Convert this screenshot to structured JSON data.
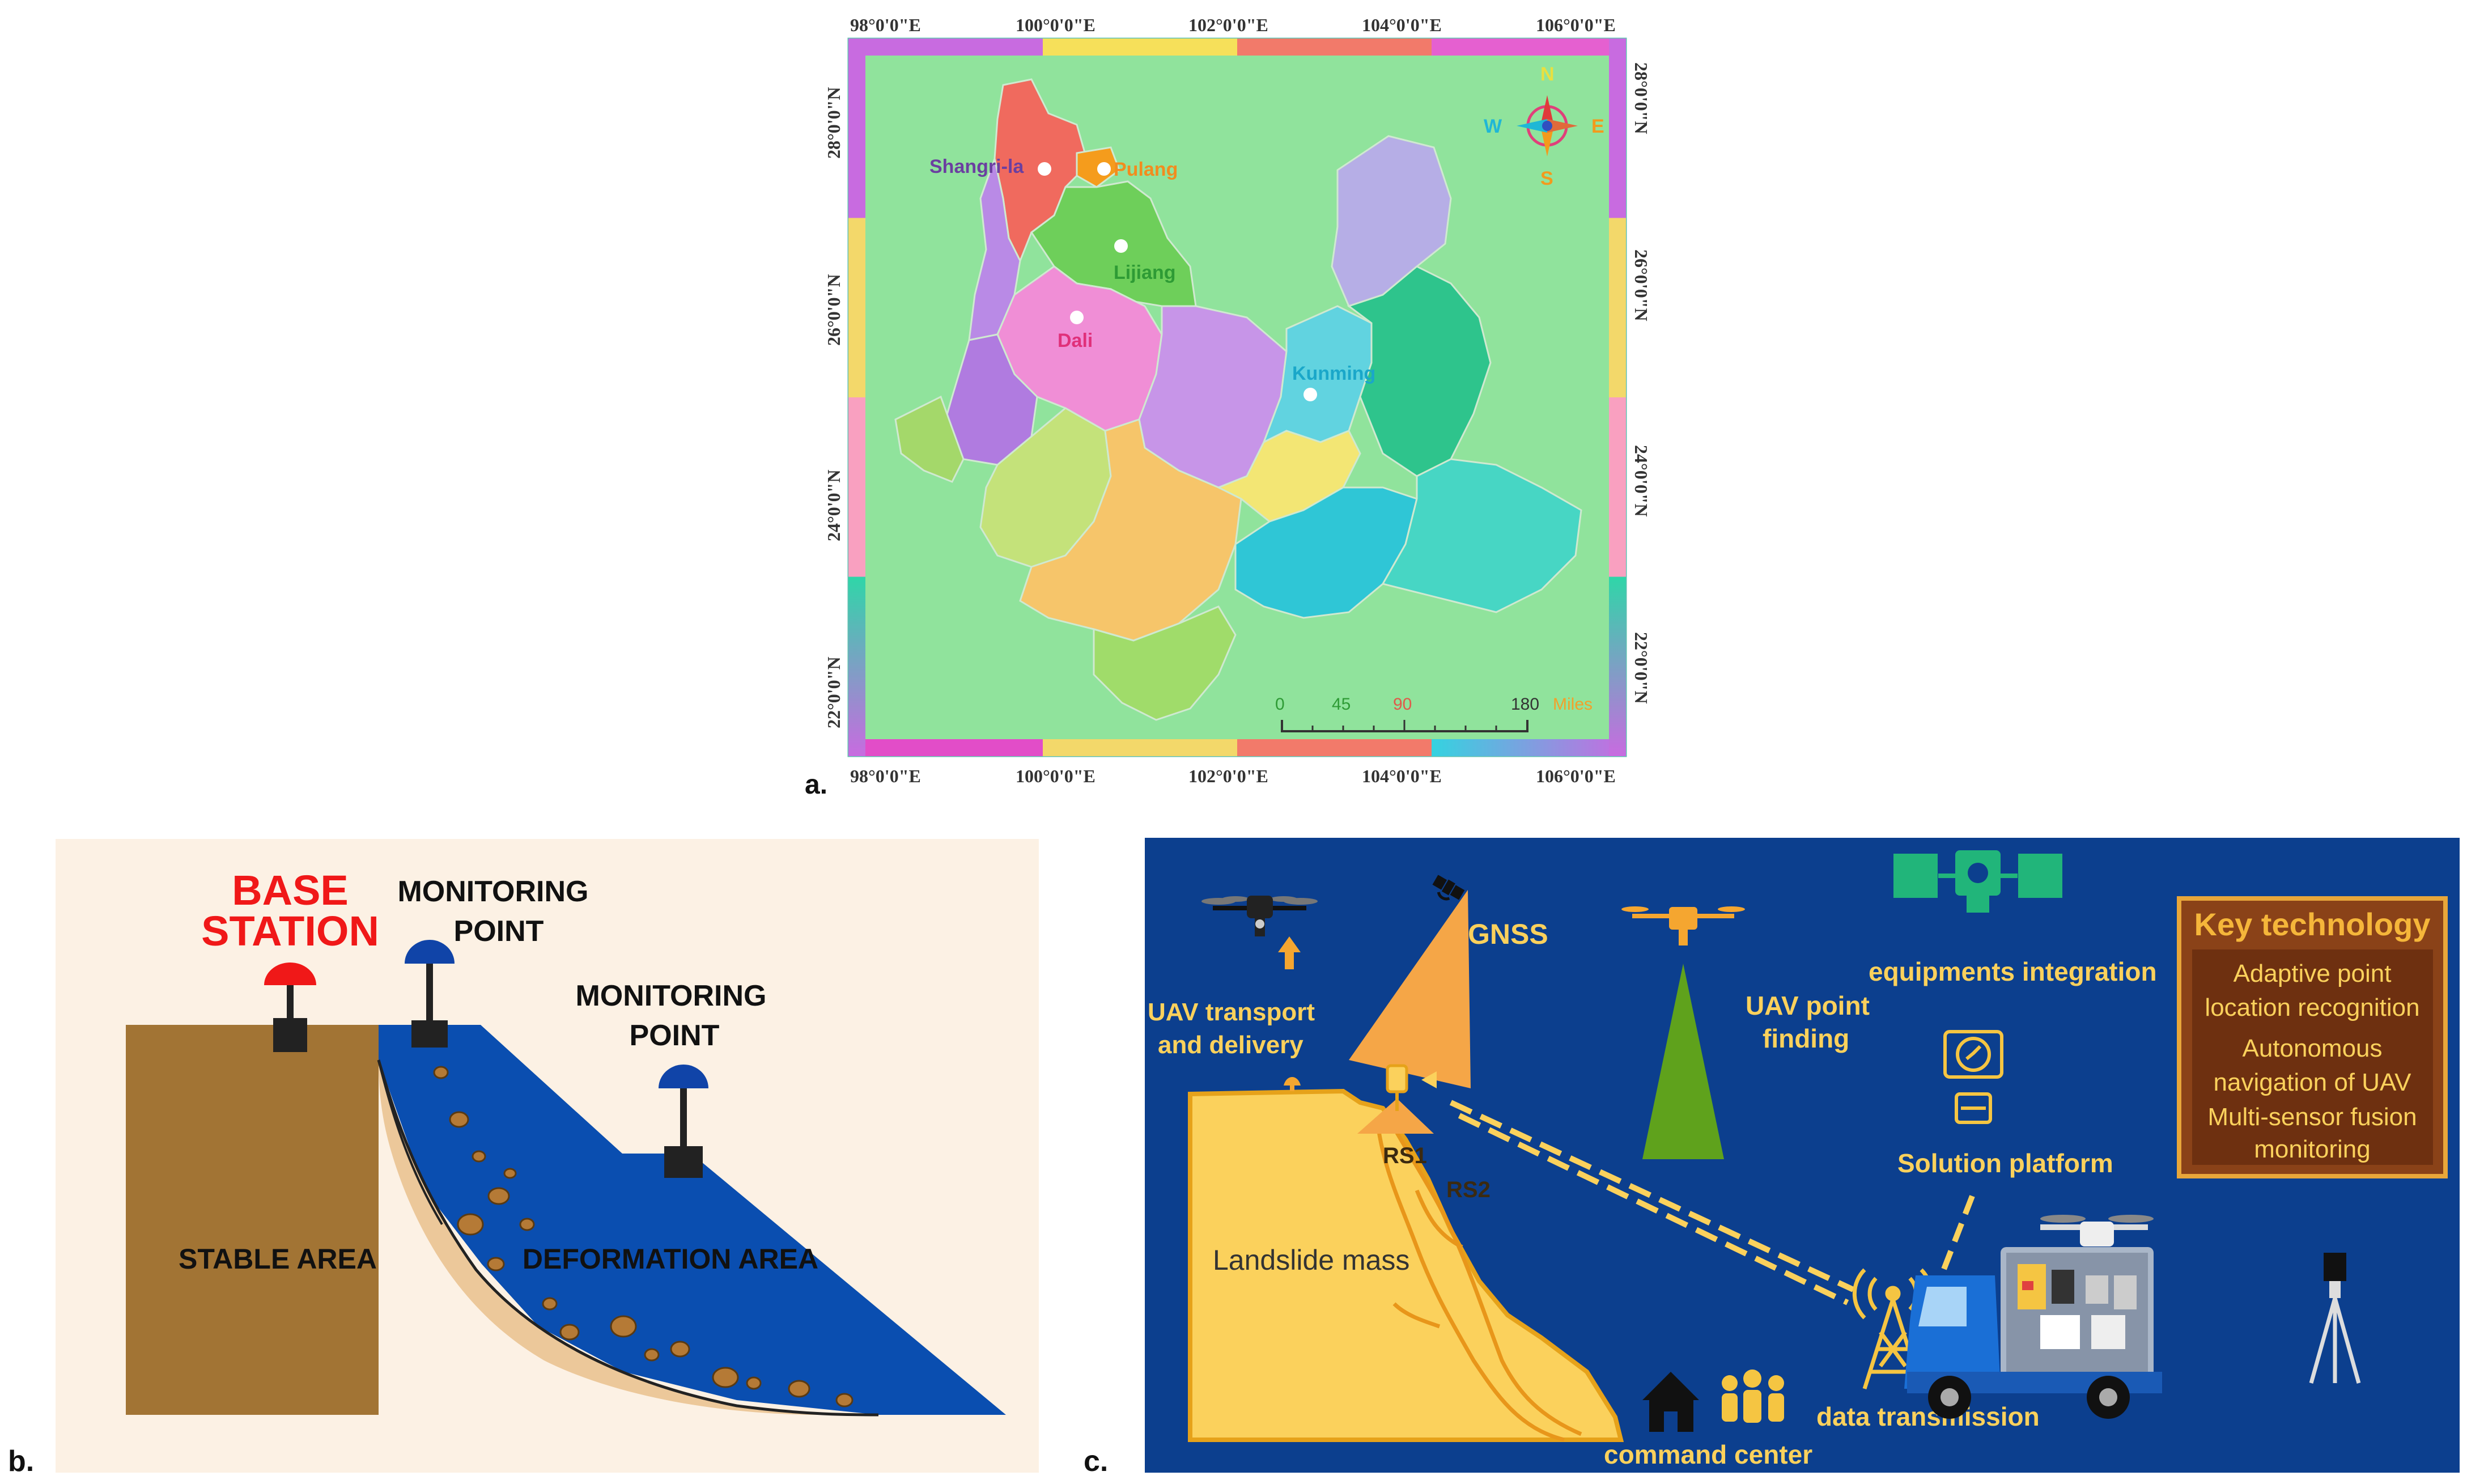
{
  "panel_a": {
    "label": "a.",
    "lon_labels": [
      "98°0'0\"E",
      "100°0'0\"E",
      "102°0'0\"E",
      "104°0'0\"E",
      "106°0'0\"E"
    ],
    "lat_labels": [
      "28°0'0\"N",
      "26°0'0\"N",
      "24°0'0\"N",
      "22°0'0\"N"
    ],
    "compass": {
      "n": "N",
      "s": "S",
      "e": "E",
      "w": "W"
    },
    "cities": [
      {
        "name": "Shangri-la",
        "color": "#6b3fa0"
      },
      {
        "name": "Pulang",
        "color": "#f28c1e"
      },
      {
        "name": "Lijiang",
        "color": "#2e9b35"
      },
      {
        "name": "Dali",
        "color": "#e0307a"
      },
      {
        "name": "Kunming",
        "color": "#1aa7c9"
      }
    ],
    "scale": {
      "ticks": [
        "0",
        "45",
        "90",
        "180"
      ],
      "unit": "Miles"
    }
  },
  "panel_b": {
    "label": "b.",
    "base_station": [
      "BASE",
      "STATION"
    ],
    "monitoring_point_1": [
      "MONITORING",
      "POINT"
    ],
    "monitoring_point_2": [
      "MONITORING",
      "POINT"
    ],
    "stable_area": "STABLE AREA",
    "deformation_area": "DEFORMATION AREA"
  },
  "panel_c": {
    "label": "c.",
    "gnss": "GNSS",
    "uav_transport": [
      "UAV transport",
      "and delivery"
    ],
    "uav_point_finding": [
      "UAV point",
      "finding"
    ],
    "equipments_integration": "equipments integration",
    "solution_platform": "Solution platform",
    "rs1": "RS1",
    "rs2": "RS2",
    "landslide_mass": "Landslide mass",
    "data_transmission": "data transmission",
    "command_center": "command center",
    "key_technology": {
      "title": "Key technology",
      "items": [
        "Adaptive point",
        "location recognition",
        "Autonomous",
        "navigation of UAV",
        "Multi-sensor fusion",
        "monitoring"
      ]
    }
  }
}
